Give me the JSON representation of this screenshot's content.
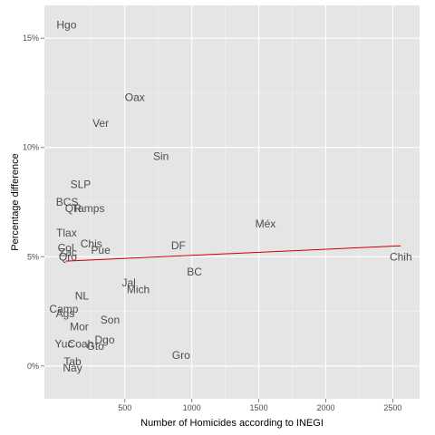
{
  "chart_data": {
    "type": "scatter",
    "title": "",
    "xlabel": "Number of Homicides according to INEGI",
    "ylabel": "Percentage difference",
    "xlim": [
      -100,
      2700
    ],
    "ylim": [
      -1.5,
      16.5
    ],
    "x_ticks": [
      {
        "value": 500,
        "label": "500"
      },
      {
        "value": 1000,
        "label": "1000"
      },
      {
        "value": 1500,
        "label": "1500"
      },
      {
        "value": 2000,
        "label": "2000"
      },
      {
        "value": 2500,
        "label": "2500"
      }
    ],
    "y_ticks": [
      {
        "value": 0,
        "label": "0%"
      },
      {
        "value": 5,
        "label": "5%"
      },
      {
        "value": 10,
        "label": "10%"
      },
      {
        "value": 15,
        "label": "15%"
      }
    ],
    "grid": true,
    "background": "#E5E5E5",
    "label_color": "#4D4D4D",
    "trend_color": "#CC0000",
    "trend_line": {
      "x": [
        60,
        2560
      ],
      "y": [
        4.8,
        5.5
      ]
    },
    "points": [
      {
        "label": "Hgo",
        "x": 65,
        "y": 15.6
      },
      {
        "label": "Oax",
        "x": 575,
        "y": 12.3
      },
      {
        "label": "Ver",
        "x": 320,
        "y": 11.1
      },
      {
        "label": "Sin",
        "x": 770,
        "y": 9.6
      },
      {
        "label": "SLP",
        "x": 170,
        "y": 8.3
      },
      {
        "label": "BCS",
        "x": 70,
        "y": 7.5
      },
      {
        "label": "QR",
        "x": 115,
        "y": 7.2
      },
      {
        "label": "Tamps",
        "x": 230,
        "y": 7.2
      },
      {
        "label": "Méx",
        "x": 1550,
        "y": 6.5
      },
      {
        "label": "Tlax",
        "x": 65,
        "y": 6.1
      },
      {
        "label": "Chis",
        "x": 250,
        "y": 5.6
      },
      {
        "label": "DF",
        "x": 900,
        "y": 5.5
      },
      {
        "label": "Col",
        "x": 60,
        "y": 5.4
      },
      {
        "label": "Pue",
        "x": 320,
        "y": 5.3
      },
      {
        "label": "Zac",
        "x": 75,
        "y": 5.2
      },
      {
        "label": "Qro",
        "x": 75,
        "y": 5.0
      },
      {
        "label": "Chih",
        "x": 2560,
        "y": 5.0
      },
      {
        "label": "BC",
        "x": 1020,
        "y": 4.3
      },
      {
        "label": "Jal",
        "x": 530,
        "y": 3.8
      },
      {
        "label": "Mich",
        "x": 600,
        "y": 3.5
      },
      {
        "label": "NL",
        "x": 180,
        "y": 3.2
      },
      {
        "label": "Camp",
        "x": 45,
        "y": 2.6
      },
      {
        "label": "Ags",
        "x": 55,
        "y": 2.4
      },
      {
        "label": "Son",
        "x": 390,
        "y": 2.1
      },
      {
        "label": "Mor",
        "x": 160,
        "y": 1.8
      },
      {
        "label": "Dgo",
        "x": 350,
        "y": 1.2
      },
      {
        "label": "Yuc",
        "x": 45,
        "y": 1.0
      },
      {
        "label": "Coah",
        "x": 170,
        "y": 1.0
      },
      {
        "label": "Gto",
        "x": 280,
        "y": 0.9
      },
      {
        "label": "Gro",
        "x": 920,
        "y": 0.5
      },
      {
        "label": "Tab",
        "x": 110,
        "y": 0.2
      },
      {
        "label": "Nay",
        "x": 110,
        "y": -0.1
      }
    ]
  }
}
